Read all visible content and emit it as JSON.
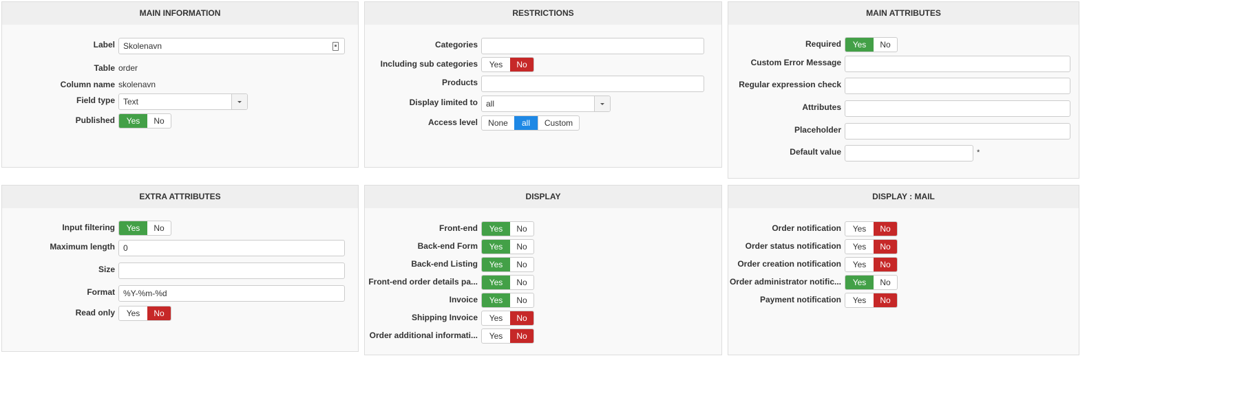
{
  "colors": {
    "yes": "#43a047",
    "no": "#c62828",
    "selected": "#1e88e5"
  },
  "main_info": {
    "title": "MAIN INFORMATION",
    "label_label": "Label",
    "label_value": "Skolenavn",
    "table_label": "Table",
    "table_value": "order",
    "column_label": "Column name",
    "column_value": "skolenavn",
    "field_type_label": "Field type",
    "field_type_value": "Text",
    "published_label": "Published",
    "published": "Yes"
  },
  "restrictions": {
    "title": "RESTRICTIONS",
    "categories_label": "Categories",
    "subcat_label": "Including sub categories",
    "subcat": "No",
    "products_label": "Products",
    "display_limited_label": "Display limited to",
    "display_limited_value": "all",
    "access_label": "Access level",
    "access_options": [
      "None",
      "all",
      "Custom"
    ],
    "access_selected": "all"
  },
  "main_attrs": {
    "title": "MAIN ATTRIBUTES",
    "required_label": "Required",
    "required": "Yes",
    "custom_error_label": "Custom Error Message",
    "regex_label": "Regular expression check",
    "attributes_label": "Attributes",
    "placeholder_label": "Placeholder",
    "default_label": "Default value",
    "default_star": "*"
  },
  "extra_attrs": {
    "title": "EXTRA ATTRIBUTES",
    "input_filtering_label": "Input filtering",
    "input_filtering": "Yes",
    "max_length_label": "Maximum length",
    "max_length_value": "0",
    "size_label": "Size",
    "format_label": "Format",
    "format_value": "%Y-%m-%d",
    "read_only_label": "Read only",
    "read_only": "No"
  },
  "display": {
    "title": "DISPLAY",
    "items": [
      {
        "label": "Front-end",
        "value": "Yes"
      },
      {
        "label": "Back-end Form",
        "value": "Yes"
      },
      {
        "label": "Back-end Listing",
        "value": "Yes"
      },
      {
        "label": "Front-end order details pa...",
        "value": "Yes"
      },
      {
        "label": "Invoice",
        "value": "Yes"
      },
      {
        "label": "Shipping Invoice",
        "value": "No"
      },
      {
        "label": "Order additional informati...",
        "value": "No"
      }
    ]
  },
  "display_mail": {
    "title": "DISPLAY : MAIL",
    "items": [
      {
        "label": "Order notification",
        "value": "No"
      },
      {
        "label": "Order status notification",
        "value": "No"
      },
      {
        "label": "Order creation notification",
        "value": "No"
      },
      {
        "label": "Order administrator notific...",
        "value": "Yes"
      },
      {
        "label": "Payment notification",
        "value": "No"
      }
    ]
  },
  "toggle": {
    "yes": "Yes",
    "no": "No"
  }
}
